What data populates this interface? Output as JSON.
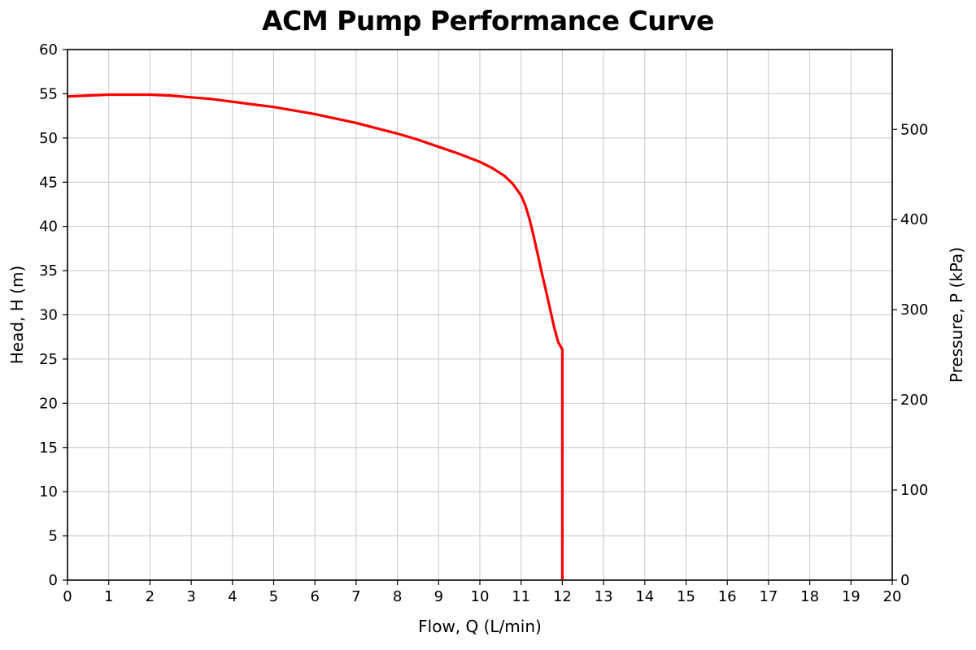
{
  "chart_data": {
    "type": "line",
    "title": "ACM Pump Performance Curve",
    "xlabel": "Flow, Q (L/min)",
    "ylabel": "Head, H (m)",
    "y2label": "Pressure, P (kPa)",
    "xlim": [
      0,
      20
    ],
    "ylim": [
      0,
      60
    ],
    "y2lim": [
      0,
      588.6
    ],
    "xticks": [
      "0",
      "1",
      "2",
      "3",
      "4",
      "5",
      "6",
      "7",
      "8",
      "9",
      "10",
      "11",
      "12",
      "13",
      "14",
      "15",
      "16",
      "17",
      "18",
      "19",
      "20"
    ],
    "yticks": [
      "0",
      "5",
      "10",
      "15",
      "20",
      "25",
      "30",
      "35",
      "40",
      "45",
      "50",
      "55",
      "60"
    ],
    "y2ticks": [
      "0",
      "100",
      "200",
      "300",
      "400",
      "500"
    ],
    "grid": true,
    "series": [
      {
        "color": "#ff0000",
        "x": [
          0,
          0.5,
          1,
          1.5,
          2,
          2.5,
          3,
          3.5,
          4,
          4.5,
          5,
          5.5,
          6,
          6.5,
          7,
          7.5,
          8,
          8.5,
          9,
          9.5,
          10,
          10.3,
          10.6,
          10.8,
          11,
          11.1,
          11.2,
          11.3,
          11.4,
          11.5,
          11.6,
          11.7,
          11.8,
          11.9,
          12,
          12,
          12
        ],
        "y": [
          54.7,
          54.8,
          54.9,
          54.9,
          54.9,
          54.8,
          54.6,
          54.4,
          54.1,
          53.8,
          53.5,
          53.1,
          52.7,
          52.2,
          51.7,
          51.1,
          50.5,
          49.8,
          49.0,
          48.2,
          47.3,
          46.6,
          45.7,
          44.8,
          43.5,
          42.4,
          40.9,
          39.0,
          36.9,
          34.8,
          32.8,
          30.7,
          28.6,
          26.9,
          26.1,
          13,
          0
        ]
      }
    ]
  }
}
